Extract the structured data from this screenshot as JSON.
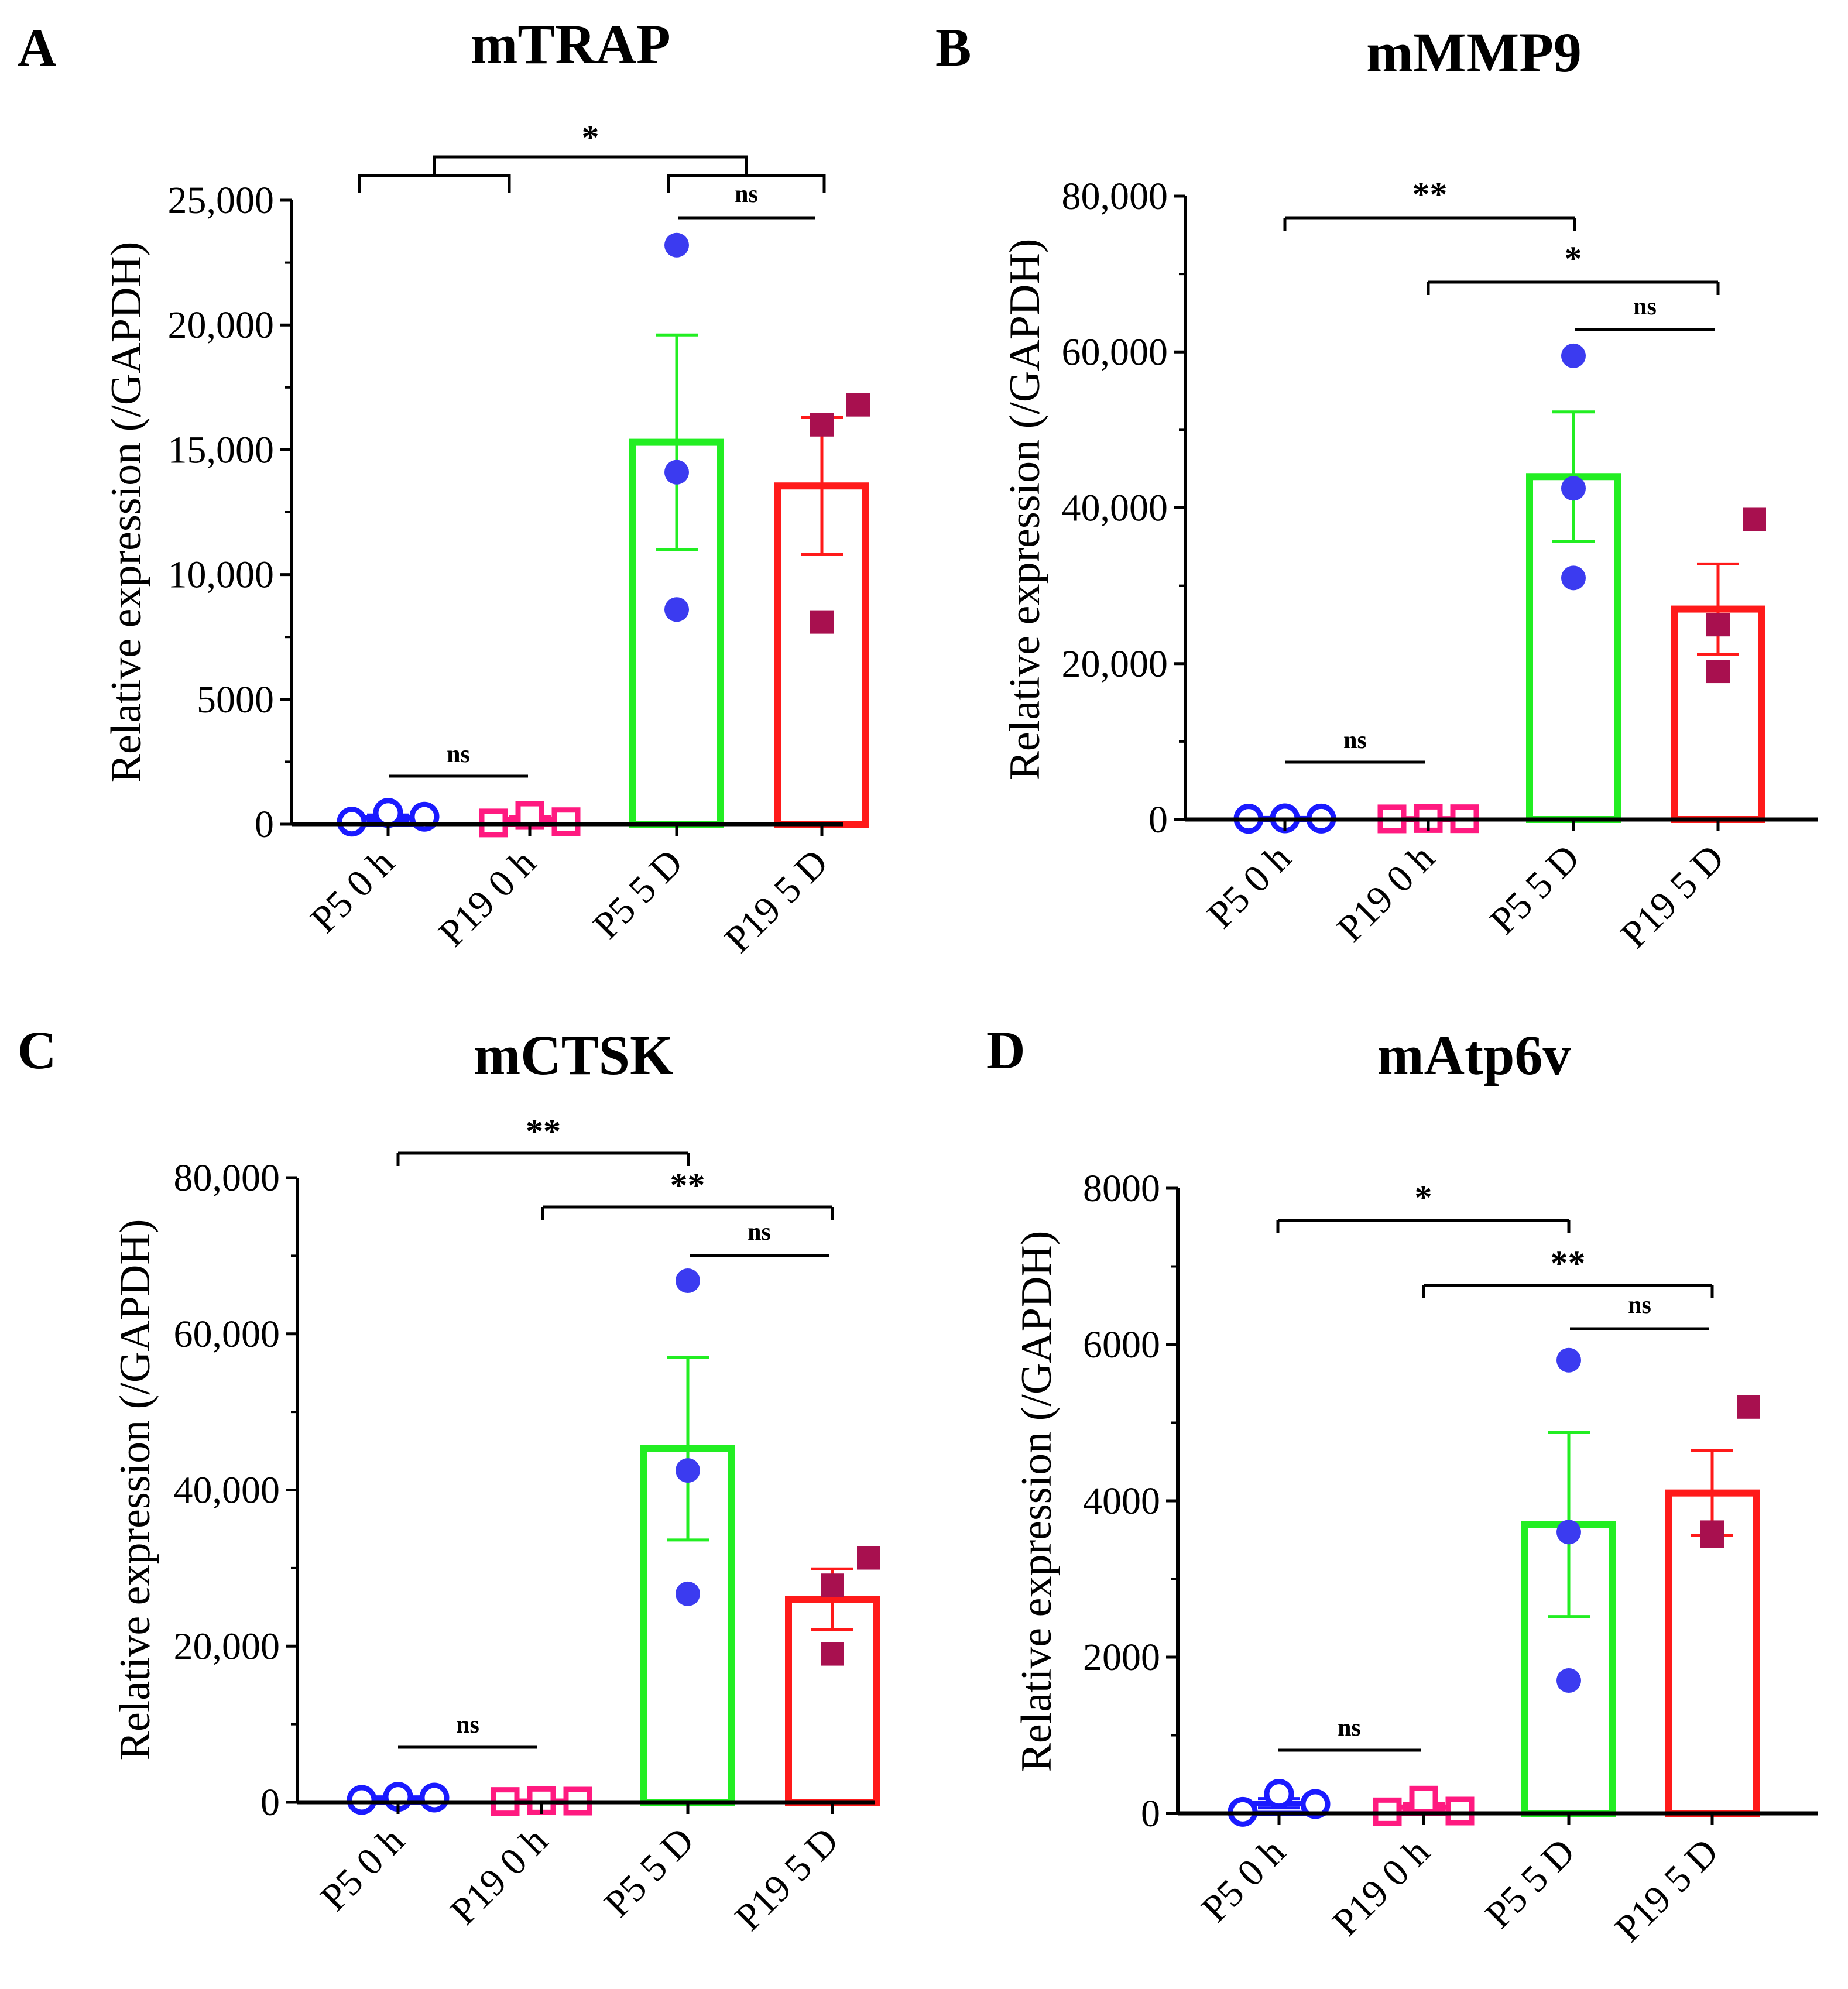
{
  "figure": {
    "colors": {
      "p5_0h": "#1a1aff",
      "p19_0h": "#ff1a80",
      "p5_5d": "#22ee22",
      "p19_5d": "#ff1a1a",
      "points_5d_p5": "#3b3bf0",
      "points_5d_p19": "#a8104f",
      "axis": "#000000"
    }
  },
  "chart_data": [
    {
      "type": "bar",
      "letter": "A",
      "title": "mTRAP",
      "ylabel": "Relative expression (/GAPDH)",
      "xlabel": "",
      "ylim": [
        0,
        25000
      ],
      "yticks": [
        0,
        5000,
        10000,
        15000,
        20000,
        25000
      ],
      "ytick_labels": [
        "0",
        "5000",
        "10,000",
        "15,000",
        "20,000",
        "25,000"
      ],
      "categories": [
        "P5 0 h",
        "P19 0 h",
        "P5 5 D",
        "P19 5 D"
      ],
      "means": [
        250,
        200,
        15300,
        13550
      ],
      "sem": [
        120,
        110,
        4300,
        2750
      ],
      "points": [
        [
          100,
          450,
          300
        ],
        [
          50,
          350,
          100
        ],
        [
          23200,
          14100,
          8600
        ],
        [
          16800,
          16000,
          8100
        ]
      ],
      "significance": [
        {
          "label": "*",
          "from": [
            0,
            1
          ],
          "to": [
            2,
            3
          ],
          "grouped": true
        },
        {
          "label": "ns",
          "from": 2,
          "to": 3
        },
        {
          "label": "ns",
          "from": 0,
          "to": 1
        }
      ]
    },
    {
      "type": "bar",
      "letter": "B",
      "title": "mMMP9",
      "ylabel": "Relative expression (/GAPDH)",
      "xlabel": "",
      "ylim": [
        0,
        80000
      ],
      "yticks": [
        0,
        20000,
        40000,
        60000,
        80000
      ],
      "ytick_labels": [
        "0",
        "20,000",
        "40,000",
        "60,000",
        "80,000"
      ],
      "categories": [
        "P5 0 h",
        "P19 0 h",
        "P5 5 D",
        "P19 5 D"
      ],
      "means": [
        120,
        100,
        44000,
        27000
      ],
      "sem": [
        40,
        40,
        8300,
        5800
      ],
      "points": [
        [
          100,
          150,
          120
        ],
        [
          80,
          120,
          100
        ],
        [
          59500,
          42500,
          31000
        ],
        [
          38500,
          25000,
          19000
        ]
      ],
      "significance": [
        {
          "label": "**",
          "from": 0,
          "to": 2
        },
        {
          "label": "*",
          "from": 1,
          "to": 3
        },
        {
          "label": "ns",
          "from": 2,
          "to": 3
        },
        {
          "label": "ns",
          "from": 0,
          "to": 1
        }
      ]
    },
    {
      "type": "bar",
      "letter": "C",
      "title": "mCTSK",
      "ylabel": "Relative expression (/GAPDH)",
      "xlabel": "",
      "ylim": [
        0,
        80000
      ],
      "yticks": [
        0,
        20000,
        40000,
        60000,
        80000
      ],
      "ytick_labels": [
        "0",
        "20,000",
        "40,000",
        "60,000",
        "80,000"
      ],
      "categories": [
        "P5 0 h",
        "P19 0 h",
        "P5 5 D",
        "P19 5 D"
      ],
      "means": [
        550,
        150,
        45300,
        26000
      ],
      "sem": [
        120,
        60,
        11700,
        3900
      ],
      "points": [
        [
          300,
          700,
          600
        ],
        [
          100,
          200,
          150
        ],
        [
          66800,
          42500,
          26700
        ],
        [
          31300,
          27800,
          19000
        ]
      ],
      "significance": [
        {
          "label": "**",
          "from": 0,
          "to": 2
        },
        {
          "label": "**",
          "from": 1,
          "to": 3
        },
        {
          "label": "ns",
          "from": 2,
          "to": 3
        },
        {
          "label": "ns",
          "from": 0,
          "to": 1
        }
      ]
    },
    {
      "type": "bar",
      "letter": "D",
      "title": "mAtp6v",
      "ylabel": "Relative expression (/GAPDH)",
      "xlabel": "",
      "ylim": [
        0,
        8000
      ],
      "yticks": [
        0,
        2000,
        4000,
        6000,
        8000
      ],
      "ytick_labels": [
        "0",
        "2000",
        "4000",
        "6000",
        "8000"
      ],
      "categories": [
        "P5 0 h",
        "P19 0 h",
        "P5 5 D",
        "P19 5 D"
      ],
      "means": [
        130,
        80,
        3700,
        4100
      ],
      "sem": [
        60,
        50,
        1180,
        540
      ],
      "points": [
        [
          20,
          250,
          120
        ],
        [
          20,
          170,
          30
        ],
        [
          5800,
          3600,
          1700
        ],
        [
          5200,
          3550,
          3600
        ]
      ],
      "significance": [
        {
          "label": "*",
          "from": 0,
          "to": 2
        },
        {
          "label": "**",
          "from": 1,
          "to": 3
        },
        {
          "label": "ns",
          "from": 2,
          "to": 3
        },
        {
          "label": "ns",
          "from": 0,
          "to": 1
        }
      ]
    }
  ]
}
